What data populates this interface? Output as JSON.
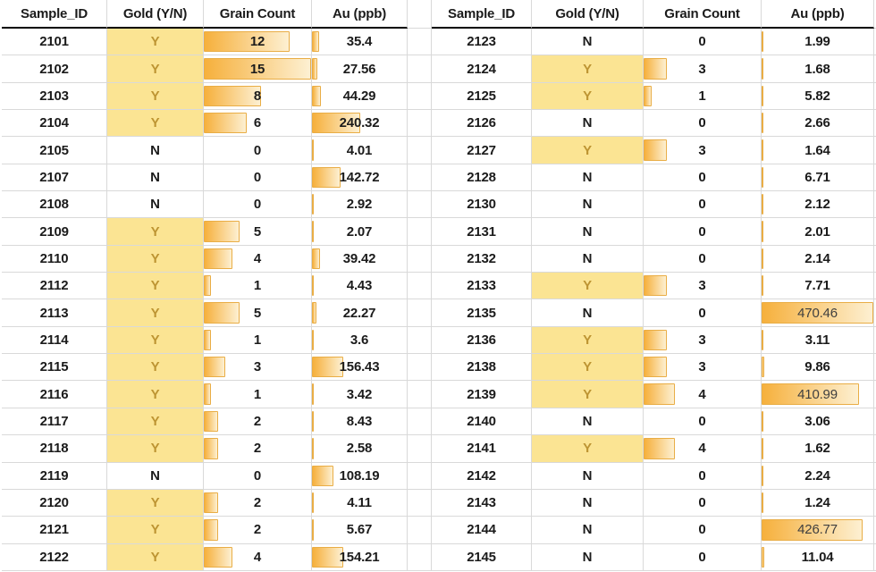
{
  "colors": {
    "bar_solid": "#f6b03c",
    "bar_fade": "#fdf0d2",
    "bar_border": "#e9ad45",
    "gold_cell_fill": "#fbe493",
    "gold_cell_text": "#bd9432",
    "gridline": "#d9d9d9",
    "header_border": "#000000",
    "text": "#1b1b1b"
  },
  "scales": {
    "grain_count_max": 15,
    "au_ppb_max": 470.46
  },
  "tables": [
    {
      "headers": [
        "Sample_ID",
        "Gold (Y/N)",
        "Grain Count",
        "Au (ppb)"
      ],
      "rows": [
        {
          "sample_id": "2101",
          "gold": "Y",
          "grain_count": 12,
          "au_ppb": "35.4"
        },
        {
          "sample_id": "2102",
          "gold": "Y",
          "grain_count": 15,
          "au_ppb": "27.56"
        },
        {
          "sample_id": "2103",
          "gold": "Y",
          "grain_count": 8,
          "au_ppb": "44.29"
        },
        {
          "sample_id": "2104",
          "gold": "Y",
          "grain_count": 6,
          "au_ppb": "240.32"
        },
        {
          "sample_id": "2105",
          "gold": "N",
          "grain_count": 0,
          "au_ppb": "4.01"
        },
        {
          "sample_id": "2107",
          "gold": "N",
          "grain_count": 0,
          "au_ppb": "142.72"
        },
        {
          "sample_id": "2108",
          "gold": "N",
          "grain_count": 0,
          "au_ppb": "2.92"
        },
        {
          "sample_id": "2109",
          "gold": "Y",
          "grain_count": 5,
          "au_ppb": "2.07"
        },
        {
          "sample_id": "2110",
          "gold": "Y",
          "grain_count": 4,
          "au_ppb": "39.42"
        },
        {
          "sample_id": "2112",
          "gold": "Y",
          "grain_count": 1,
          "au_ppb": "4.43"
        },
        {
          "sample_id": "2113",
          "gold": "Y",
          "grain_count": 5,
          "au_ppb": "22.27"
        },
        {
          "sample_id": "2114",
          "gold": "Y",
          "grain_count": 1,
          "au_ppb": "3.6"
        },
        {
          "sample_id": "2115",
          "gold": "Y",
          "grain_count": 3,
          "au_ppb": "156.43"
        },
        {
          "sample_id": "2116",
          "gold": "Y",
          "grain_count": 1,
          "au_ppb": "3.42"
        },
        {
          "sample_id": "2117",
          "gold": "Y",
          "grain_count": 2,
          "au_ppb": "8.43"
        },
        {
          "sample_id": "2118",
          "gold": "Y",
          "grain_count": 2,
          "au_ppb": "2.58"
        },
        {
          "sample_id": "2119",
          "gold": "N",
          "grain_count": 0,
          "au_ppb": "108.19"
        },
        {
          "sample_id": "2120",
          "gold": "Y",
          "grain_count": 2,
          "au_ppb": "4.11"
        },
        {
          "sample_id": "2121",
          "gold": "Y",
          "grain_count": 2,
          "au_ppb": "5.67"
        },
        {
          "sample_id": "2122",
          "gold": "Y",
          "grain_count": 4,
          "au_ppb": "154.21"
        }
      ]
    },
    {
      "headers": [
        "Sample_ID",
        "Gold (Y/N)",
        "Grain Count",
        "Au (ppb)"
      ],
      "rows": [
        {
          "sample_id": "2123",
          "gold": "N",
          "grain_count": 0,
          "au_ppb": "1.99"
        },
        {
          "sample_id": "2124",
          "gold": "Y",
          "grain_count": 3,
          "au_ppb": "1.68"
        },
        {
          "sample_id": "2125",
          "gold": "Y",
          "grain_count": 1,
          "au_ppb": "5.82"
        },
        {
          "sample_id": "2126",
          "gold": "N",
          "grain_count": 0,
          "au_ppb": "2.66"
        },
        {
          "sample_id": "2127",
          "gold": "Y",
          "grain_count": 3,
          "au_ppb": "1.64"
        },
        {
          "sample_id": "2128",
          "gold": "N",
          "grain_count": 0,
          "au_ppb": "6.71"
        },
        {
          "sample_id": "2130",
          "gold": "N",
          "grain_count": 0,
          "au_ppb": "2.12"
        },
        {
          "sample_id": "2131",
          "gold": "N",
          "grain_count": 0,
          "au_ppb": "2.01"
        },
        {
          "sample_id": "2132",
          "gold": "N",
          "grain_count": 0,
          "au_ppb": "2.14"
        },
        {
          "sample_id": "2133",
          "gold": "Y",
          "grain_count": 3,
          "au_ppb": "7.71"
        },
        {
          "sample_id": "2135",
          "gold": "N",
          "grain_count": 0,
          "au_ppb": "470.46"
        },
        {
          "sample_id": "2136",
          "gold": "Y",
          "grain_count": 3,
          "au_ppb": "3.11"
        },
        {
          "sample_id": "2138",
          "gold": "Y",
          "grain_count": 3,
          "au_ppb": "9.86"
        },
        {
          "sample_id": "2139",
          "gold": "Y",
          "grain_count": 4,
          "au_ppb": "410.99"
        },
        {
          "sample_id": "2140",
          "gold": "N",
          "grain_count": 0,
          "au_ppb": "3.06"
        },
        {
          "sample_id": "2141",
          "gold": "Y",
          "grain_count": 4,
          "au_ppb": "1.62"
        },
        {
          "sample_id": "2142",
          "gold": "N",
          "grain_count": 0,
          "au_ppb": "2.24"
        },
        {
          "sample_id": "2143",
          "gold": "N",
          "grain_count": 0,
          "au_ppb": "1.24"
        },
        {
          "sample_id": "2144",
          "gold": "N",
          "grain_count": 0,
          "au_ppb": "426.77"
        },
        {
          "sample_id": "2145",
          "gold": "N",
          "grain_count": 0,
          "au_ppb": "11.04"
        }
      ]
    }
  ]
}
